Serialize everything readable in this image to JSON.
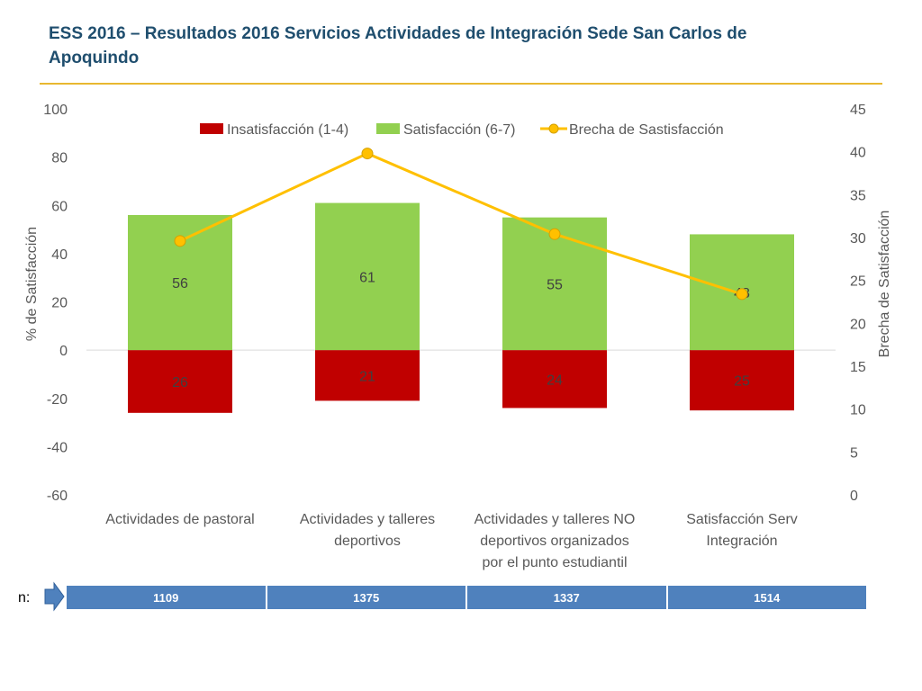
{
  "title": "ESS 2016 – Resultados 2016 Servicios Actividades de Integración Sede San Carlos de Apoquindo",
  "chart_data": {
    "type": "bar",
    "stacked": true,
    "categories": [
      [
        "Actividades de pastoral"
      ],
      [
        "Actividades y talleres",
        "deportivos"
      ],
      [
        "Actividades y talleres NO",
        "deportivos organizados",
        "por el punto estudiantil"
      ],
      [
        "Satisfacción Serv",
        "Integración"
      ]
    ],
    "series": [
      {
        "name": "Insatisfacción (1-4)",
        "axis": "left",
        "kind": "bar",
        "color": "#c00000",
        "values": [
          -26,
          -21,
          -24,
          -25
        ],
        "labels": [
          "26",
          "21",
          "24",
          "25"
        ]
      },
      {
        "name": "Satisfacción (6-7)",
        "axis": "left",
        "kind": "bar",
        "color": "#92d050",
        "values": [
          56,
          61,
          55,
          48
        ],
        "labels": [
          "56",
          "61",
          "55",
          "48"
        ]
      },
      {
        "name": "Brecha de Sastisfacción",
        "axis": "right",
        "kind": "line",
        "color": "#ffc000",
        "values": [
          29.6,
          39.8,
          30.4,
          23.4
        ]
      }
    ],
    "ylabel": "% de Satisfacción",
    "y2label": "Brecha de Satisfacción",
    "ylim": [
      -60,
      100
    ],
    "yticks": [
      100,
      80,
      60,
      40,
      20,
      0,
      -20,
      -40,
      -60
    ],
    "y2lim": [
      0,
      45
    ],
    "y2ticks": [
      45,
      40,
      35,
      30,
      25,
      20,
      15,
      10,
      5,
      0
    ],
    "legend_position": "top"
  },
  "n_row": {
    "label": "n:",
    "values": [
      "1109",
      "1375",
      "1337",
      "1514"
    ]
  }
}
